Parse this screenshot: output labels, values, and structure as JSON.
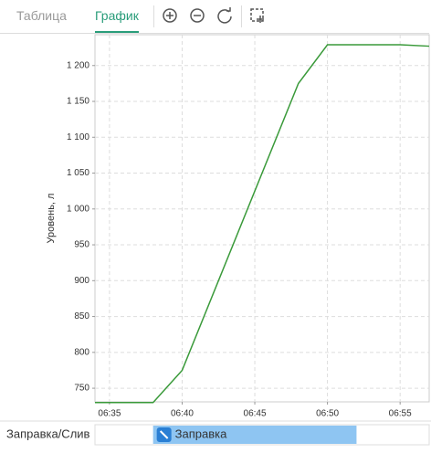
{
  "tabs": [
    "Таблица",
    "График"
  ],
  "chart_data": {
    "type": "line",
    "y_label": "Уровень, л",
    "x": [
      "06:34",
      "06:38",
      "06:40",
      "06:48",
      "06:50",
      "06:55",
      "06:57"
    ],
    "series": [
      {
        "name": "Уровень",
        "color": "#3a9a3a",
        "values": [
          730,
          730,
          775,
          1175,
          1229,
          1229,
          1227
        ]
      }
    ],
    "xlim": [
      "06:34",
      "06:57"
    ],
    "xticks": [
      "06:35",
      "06:40",
      "06:45",
      "06:50",
      "06:55"
    ],
    "ylim": [
      731,
      1243
    ],
    "yticks": [
      750,
      800,
      850,
      900,
      950,
      {
        "value": 1000,
        "label": "1 000"
      },
      {
        "value": 1050,
        "label": "1 050"
      },
      {
        "value": 1100,
        "label": "1 100"
      },
      {
        "value": 1150,
        "label": "1 150"
      },
      {
        "value": 1200,
        "label": "1 200"
      }
    ],
    "grid": true,
    "events": {
      "row_label": "Заправка/Слив",
      "items": [
        {
          "label": "Заправка",
          "start": "06:38",
          "end": "06:52",
          "color": "#8ec5f2"
        }
      ]
    }
  }
}
